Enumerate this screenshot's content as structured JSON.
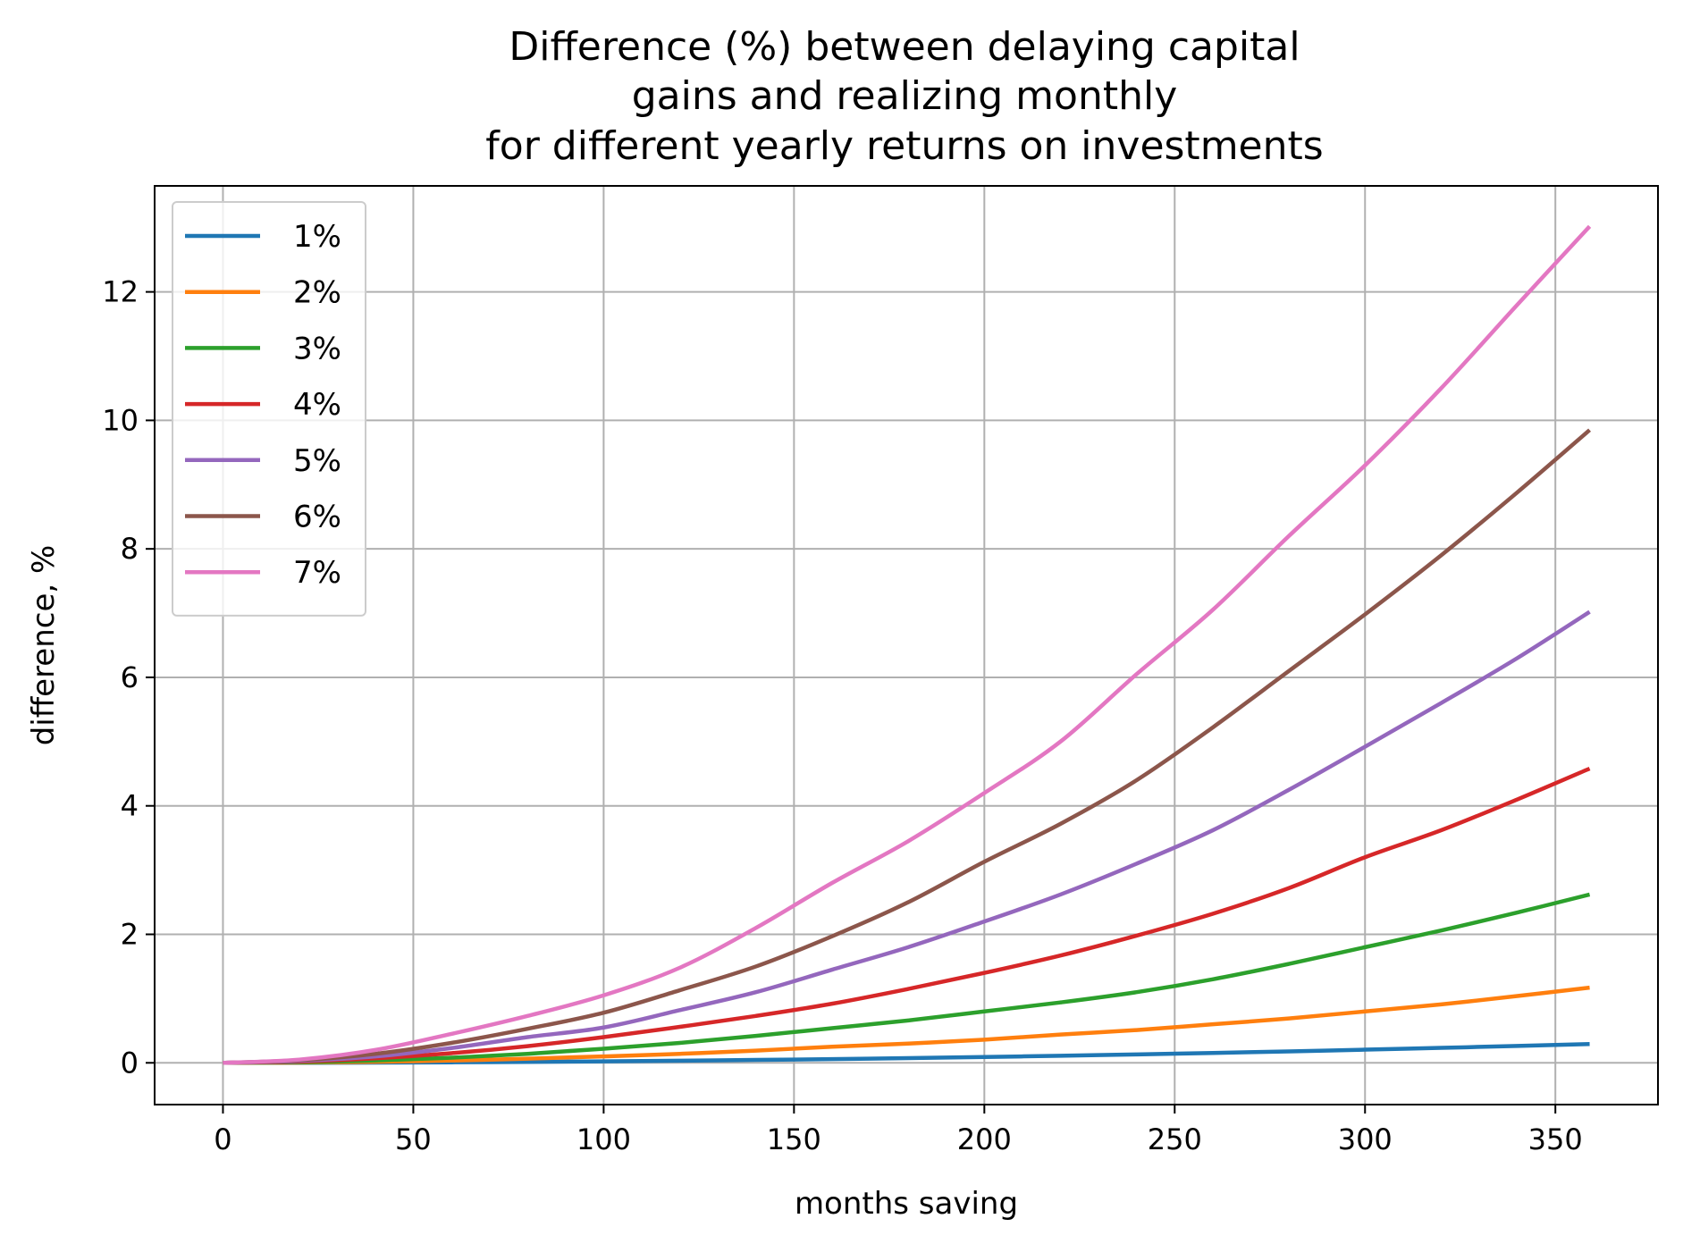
{
  "chart_data": {
    "type": "line",
    "title_lines": [
      "Difference (%) between delaying capital",
      "gains and realizing monthly",
      "for different yearly returns on investments"
    ],
    "xlabel": "months saving",
    "ylabel": "difference, %",
    "xlim": [
      -17.95,
      376.95
    ],
    "ylim": [
      -0.65,
      13.65
    ],
    "xticks": [
      0,
      50,
      100,
      150,
      200,
      250,
      300,
      350
    ],
    "xtick_labels": [
      "0",
      "50",
      "100",
      "150",
      "200",
      "250",
      "300",
      "350"
    ],
    "yticks": [
      0,
      2,
      4,
      6,
      8,
      10,
      12
    ],
    "ytick_labels": [
      "0",
      "2",
      "4",
      "6",
      "8",
      "10",
      "12"
    ],
    "grid": true,
    "legend_position": "upper-left",
    "x": [
      0,
      20,
      40,
      60,
      80,
      100,
      120,
      140,
      160,
      180,
      200,
      220,
      240,
      260,
      280,
      300,
      320,
      340,
      359
    ],
    "series": [
      {
        "name": "1%",
        "color": "#1f77b4",
        "values": [
          0,
          0.001,
          0.004,
          0.008,
          0.015,
          0.023,
          0.033,
          0.045,
          0.058,
          0.074,
          0.091,
          0.11,
          0.131,
          0.154,
          0.178,
          0.205,
          0.233,
          0.263,
          0.293
        ]
      },
      {
        "name": "2%",
        "color": "#ff7f0e",
        "values": [
          0,
          0.004,
          0.016,
          0.036,
          0.064,
          0.1,
          0.14,
          0.19,
          0.25,
          0.3,
          0.36,
          0.44,
          0.51,
          0.6,
          0.69,
          0.8,
          0.91,
          1.04,
          1.17
        ]
      },
      {
        "name": "3%",
        "color": "#2ca02c",
        "values": [
          0,
          0.009,
          0.036,
          0.08,
          0.14,
          0.22,
          0.31,
          0.42,
          0.54,
          0.66,
          0.8,
          0.94,
          1.1,
          1.3,
          1.54,
          1.8,
          2.06,
          2.34,
          2.62
        ]
      },
      {
        "name": "4%",
        "color": "#d62728",
        "values": [
          0,
          0.02,
          0.07,
          0.15,
          0.26,
          0.4,
          0.56,
          0.73,
          0.92,
          1.15,
          1.4,
          1.67,
          1.98,
          2.32,
          2.72,
          3.2,
          3.62,
          4.1,
          4.58
        ]
      },
      {
        "name": "5%",
        "color": "#9467bd",
        "values": [
          0,
          0.03,
          0.1,
          0.23,
          0.4,
          0.55,
          0.82,
          1.1,
          1.45,
          1.8,
          2.2,
          2.62,
          3.1,
          3.62,
          4.25,
          4.92,
          5.6,
          6.3,
          7.02
        ]
      },
      {
        "name": "6%",
        "color": "#8c564b",
        "values": [
          0,
          0.04,
          0.14,
          0.31,
          0.53,
          0.78,
          1.13,
          1.5,
          1.97,
          2.5,
          3.13,
          3.72,
          4.4,
          5.22,
          6.1,
          6.98,
          7.9,
          8.88,
          9.85
        ]
      },
      {
        "name": "7%",
        "color": "#e377c2",
        "values": [
          0,
          0.05,
          0.2,
          0.45,
          0.73,
          1.05,
          1.48,
          2.1,
          2.8,
          3.45,
          4.2,
          5.0,
          6.05,
          7.05,
          8.2,
          9.3,
          10.5,
          11.8,
          13.02
        ]
      }
    ]
  }
}
